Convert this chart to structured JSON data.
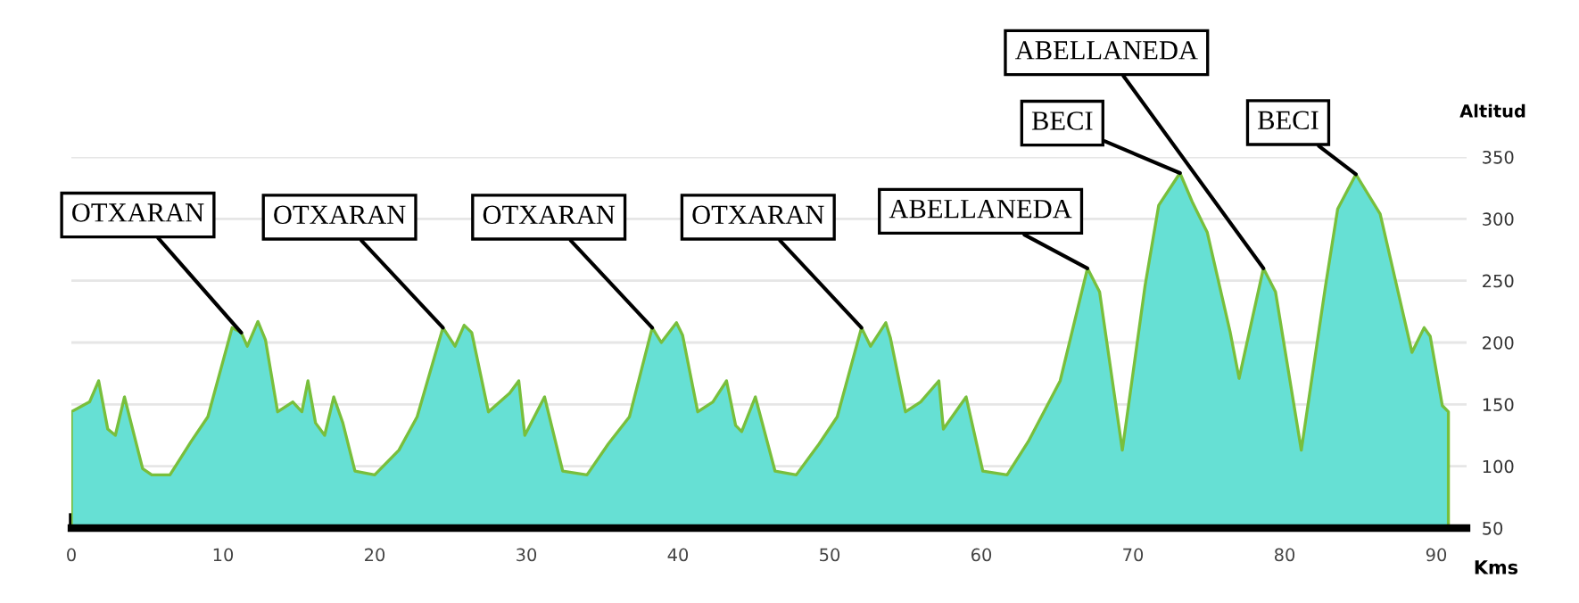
{
  "chart_data": {
    "type": "area",
    "xlabel": "Kms",
    "ylabel": "Altitud",
    "xlim": [
      0,
      92
    ],
    "ylim": [
      50,
      350
    ],
    "xticks": [
      0,
      10,
      20,
      30,
      40,
      50,
      60,
      70,
      80,
      90
    ],
    "yticks": [
      50,
      100,
      150,
      200,
      250,
      300,
      350
    ],
    "grid": "y",
    "series": [
      {
        "color": "#66e0d4",
        "x": [
          0,
          1.2,
          1.8,
          2.4,
          2.9,
          3.5,
          4.7,
          5.3,
          6.5,
          7.9,
          9.0,
          10.6,
          11.2,
          11.6,
          12.3,
          12.8,
          13.6,
          14.6,
          15.2,
          15.6,
          16.1,
          16.7,
          17.3,
          17.9,
          18.7,
          20.0,
          21.6,
          22.8,
          24.5,
          25.3,
          25.9,
          26.4,
          27.5,
          28.9,
          29.5,
          29.9,
          31.2,
          32.4,
          34.0,
          35.4,
          36.8,
          38.3,
          38.9,
          39.9,
          40.3,
          41.3,
          42.3,
          43.2,
          43.8,
          44.2,
          45.1,
          46.4,
          47.8,
          49.3,
          50.5,
          52.1,
          52.7,
          53.7,
          54.0,
          55.0,
          56.0,
          57.2,
          57.5,
          59.0,
          60.1,
          61.7,
          63.1,
          65.2,
          67.0,
          67.8,
          69.3,
          70.8,
          71.7,
          73.1,
          73.9,
          74.9,
          76.4,
          77.0,
          78.6,
          79.4,
          81.1,
          82.7,
          83.5,
          84.7,
          86.3,
          88.4,
          89.2,
          89.6,
          90.4,
          90.8
        ],
        "values": [
          144,
          152,
          169,
          130,
          125,
          156,
          98,
          93,
          93,
          120,
          140,
          212,
          208,
          197,
          217,
          202,
          144,
          152,
          144,
          169,
          135,
          125,
          156,
          135,
          96,
          93,
          113,
          140,
          212,
          197,
          214,
          208,
          144,
          159,
          169,
          125,
          156,
          96,
          93,
          118,
          140,
          212,
          200,
          216,
          206,
          144,
          152,
          169,
          133,
          128,
          156,
          96,
          93,
          118,
          140,
          212,
          197,
          216,
          204,
          144,
          152,
          169,
          130,
          156,
          96,
          93,
          120,
          169,
          260,
          241,
          113,
          246,
          311,
          337,
          314,
          289,
          209,
          171,
          260,
          241,
          113,
          246,
          308,
          336,
          304,
          192,
          212,
          205,
          149,
          144
        ]
      }
    ],
    "annotations": [
      {
        "text": "OTXARAN",
        "x": 11.2,
        "y": 208
      },
      {
        "text": "OTXARAN",
        "x": 24.5,
        "y": 212
      },
      {
        "text": "OTXARAN",
        "x": 38.3,
        "y": 212
      },
      {
        "text": "OTXARAN",
        "x": 52.1,
        "y": 212
      },
      {
        "text": "ABELLANEDA",
        "x": 67.0,
        "y": 260
      },
      {
        "text": "BECI",
        "x": 73.1,
        "y": 337
      },
      {
        "text": "ABELLANEDA",
        "x": 78.6,
        "y": 260
      },
      {
        "text": "BECI",
        "x": 84.7,
        "y": 336
      }
    ]
  }
}
